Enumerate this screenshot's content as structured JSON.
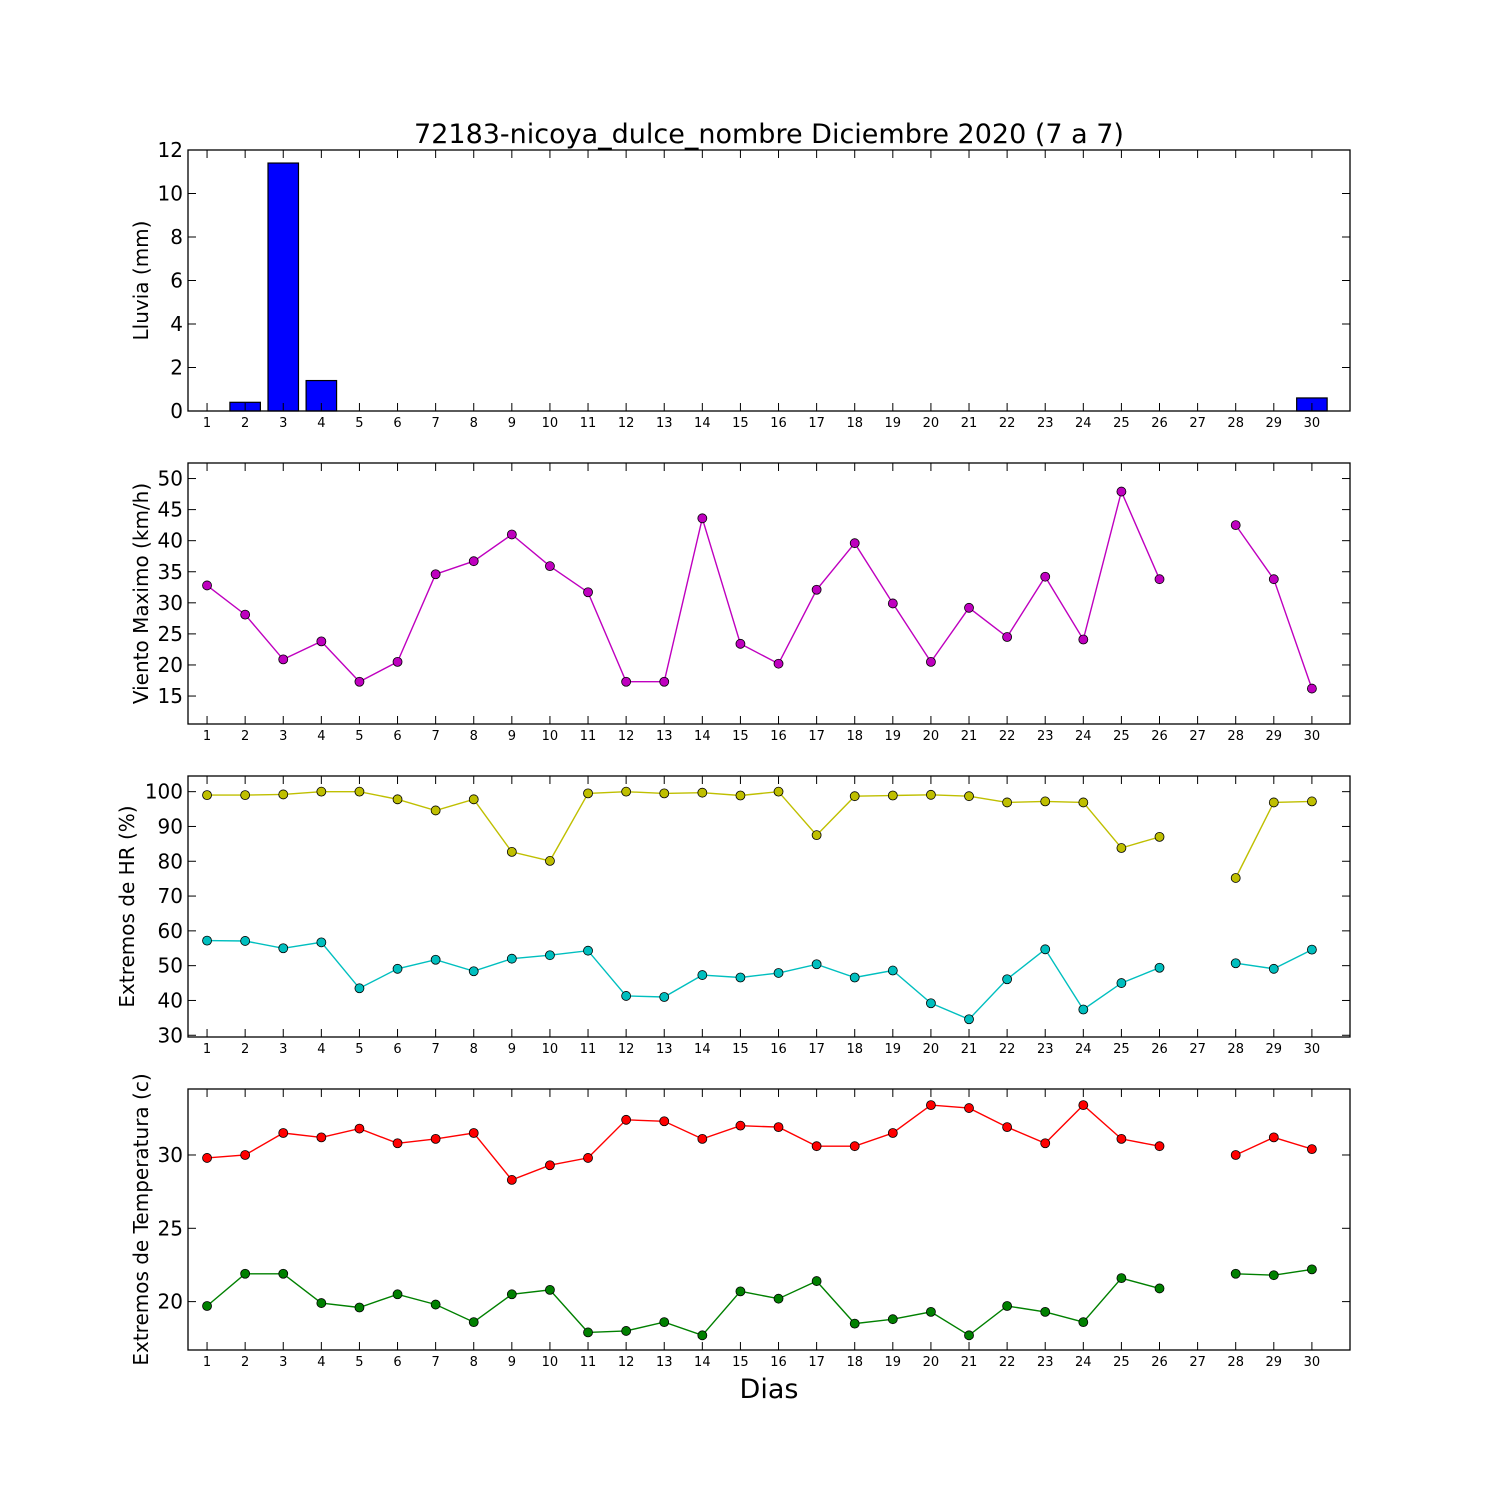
{
  "title": "72183-nicoya_dulce_nombre Diciembre 2020  (7 a 7)",
  "xlabel": "Dias",
  "chart_data": [
    {
      "type": "bar",
      "ylabel": "Lluvia (mm)",
      "ylim": [
        0,
        12
      ],
      "yticks": [
        0,
        2,
        4,
        6,
        8,
        10,
        12
      ],
      "categories": [
        "1",
        "2",
        "3",
        "4",
        "5",
        "6",
        "7",
        "8",
        "9",
        "10",
        "11",
        "12",
        "13",
        "14",
        "15",
        "16",
        "17",
        "18",
        "19",
        "20",
        "21",
        "22",
        "23",
        "24",
        "25",
        "26",
        "27",
        "28",
        "29",
        "30"
      ],
      "series": [
        {
          "color": "#0000ff",
          "values": [
            0,
            0.4,
            11.4,
            1.4,
            0,
            0,
            0,
            0,
            0,
            0,
            0,
            0,
            0,
            0,
            0,
            0,
            0,
            0,
            0,
            0,
            0,
            0,
            0,
            0,
            0,
            0,
            0,
            0,
            0,
            0.6
          ]
        }
      ]
    },
    {
      "type": "line",
      "ylabel": "Viento Maximo (km/h)",
      "ylim": [
        10.5,
        52.5
      ],
      "yticks": [
        15,
        20,
        25,
        30,
        35,
        40,
        45,
        50
      ],
      "categories": [
        "1",
        "2",
        "3",
        "4",
        "5",
        "6",
        "7",
        "8",
        "9",
        "10",
        "11",
        "12",
        "13",
        "14",
        "15",
        "16",
        "17",
        "18",
        "19",
        "20",
        "21",
        "22",
        "23",
        "24",
        "25",
        "26",
        "27",
        "28",
        "29",
        "30"
      ],
      "series": [
        {
          "color": "#bf00bf",
          "values": [
            32.8,
            28.1,
            20.9,
            23.8,
            17.3,
            20.5,
            34.6,
            36.7,
            41.0,
            35.9,
            31.7,
            17.3,
            17.3,
            43.6,
            23.4,
            20.2,
            32.1,
            39.6,
            29.9,
            20.5,
            29.2,
            24.5,
            34.2,
            24.1,
            47.9,
            33.8,
            null,
            42.5,
            33.8,
            16.2
          ]
        }
      ]
    },
    {
      "type": "line",
      "ylabel": "Extremos de HR (%)",
      "ylim": [
        29.5,
        104.5
      ],
      "yticks": [
        30,
        40,
        50,
        60,
        70,
        80,
        90,
        100
      ],
      "categories": [
        "1",
        "2",
        "3",
        "4",
        "5",
        "6",
        "7",
        "8",
        "9",
        "10",
        "11",
        "12",
        "13",
        "14",
        "15",
        "16",
        "17",
        "18",
        "19",
        "20",
        "21",
        "22",
        "23",
        "24",
        "25",
        "26",
        "27",
        "28",
        "29",
        "30"
      ],
      "series": [
        {
          "color": "#bfbf00",
          "values": [
            99,
            99,
            99.2,
            100,
            100,
            97.8,
            94.6,
            97.8,
            82.7,
            80.1,
            99.5,
            100,
            99.5,
            99.7,
            98.9,
            100,
            87.5,
            98.7,
            98.9,
            99.1,
            98.7,
            96.9,
            97.2,
            96.9,
            83.8,
            87,
            null,
            75.2,
            96.9,
            97.2
          ]
        },
        {
          "color": "#00bfbf",
          "values": [
            57.2,
            57.1,
            55,
            56.7,
            43.5,
            49.1,
            51.7,
            48.4,
            52,
            53,
            54.3,
            41.3,
            41,
            47.3,
            46.6,
            47.9,
            50.4,
            46.6,
            48.6,
            39.2,
            34.6,
            46.1,
            54.7,
            37.4,
            45,
            49.4,
            null,
            50.7,
            49.1,
            54.6
          ]
        }
      ]
    },
    {
      "type": "line",
      "ylabel": "Extremos de Temperatura (c)",
      "ylim": [
        16.7,
        34.5
      ],
      "yticks": [
        20,
        25,
        30
      ],
      "categories": [
        "1",
        "2",
        "3",
        "4",
        "5",
        "6",
        "7",
        "8",
        "9",
        "10",
        "11",
        "12",
        "13",
        "14",
        "15",
        "16",
        "17",
        "18",
        "19",
        "20",
        "21",
        "22",
        "23",
        "24",
        "25",
        "26",
        "27",
        "28",
        "29",
        "30"
      ],
      "series": [
        {
          "color": "#ff0000",
          "values": [
            29.8,
            30,
            31.5,
            31.2,
            31.8,
            30.8,
            31.1,
            31.5,
            28.3,
            29.3,
            29.8,
            32.4,
            32.3,
            31.1,
            32,
            31.9,
            30.6,
            30.6,
            31.5,
            33.4,
            33.2,
            31.9,
            30.8,
            33.4,
            31.1,
            30.6,
            null,
            30,
            31.2,
            30.4
          ]
        },
        {
          "color": "#008000",
          "values": [
            19.7,
            21.9,
            21.9,
            19.9,
            19.6,
            20.5,
            19.8,
            18.6,
            20.5,
            20.8,
            17.9,
            18,
            18.6,
            17.7,
            20.7,
            20.2,
            21.4,
            18.5,
            18.8,
            19.3,
            17.7,
            19.7,
            19.3,
            18.6,
            21.6,
            20.9,
            null,
            21.9,
            21.8,
            22.2
          ]
        }
      ]
    }
  ]
}
